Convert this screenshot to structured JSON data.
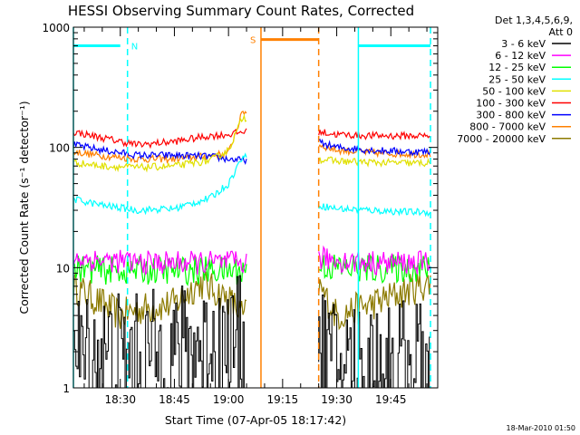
{
  "chart_data": {
    "type": "line",
    "title": "HESSI Observing Summary Count Rates, Corrected",
    "xlabel": "Start Time (07-Apr-05 18:17:42)",
    "ylabel": "Corrected Count Rate (s⁻¹ detector⁻¹)",
    "yscale": "log",
    "ylim": [
      1,
      1000
    ],
    "xlim": [
      "18:17",
      "19:58"
    ],
    "xticks": [
      "18:30",
      "18:45",
      "19:00",
      "19:15",
      "19:30",
      "19:45"
    ],
    "yticks": [
      "1",
      "10",
      "100",
      "1000"
    ],
    "legend_header": [
      "Det 1,3,4,5,6,9,",
      "Att 0"
    ],
    "legend_position": "top-right",
    "grid": false,
    "data_gaps": [
      [
        "19:05",
        "19:25"
      ]
    ],
    "series": [
      {
        "name": "3 - 6 keV",
        "color": "#000000",
        "x": [
          "18:17",
          "18:25",
          "18:35",
          "18:45",
          "18:55",
          "19:00",
          "19:04",
          "19:25",
          "19:30",
          "19:40",
          "19:50",
          "19:56"
        ],
        "values": [
          1.8,
          1.9,
          1.8,
          2.0,
          2.3,
          2.2,
          2.5,
          2.0,
          1.6,
          1.6,
          1.6,
          1.6
        ]
      },
      {
        "name": "6 - 12 keV",
        "color": "#ff00ff",
        "x": [
          "18:17",
          "18:25",
          "18:35",
          "18:45",
          "18:55",
          "19:00",
          "19:04",
          "19:25",
          "19:30",
          "19:40",
          "19:50",
          "19:56"
        ],
        "values": [
          12,
          11.5,
          11,
          11,
          11,
          11,
          11,
          12,
          11.5,
          11,
          11,
          11
        ]
      },
      {
        "name": "12 - 25 keV",
        "color": "#00ff00",
        "x": [
          "18:17",
          "18:25",
          "18:35",
          "18:45",
          "18:55",
          "19:00",
          "19:04",
          "19:25",
          "19:30",
          "19:40",
          "19:50",
          "19:56"
        ],
        "values": [
          10,
          9.5,
          9.5,
          9.5,
          9.5,
          9.5,
          9.5,
          10.5,
          10,
          9.8,
          9.8,
          9.8
        ]
      },
      {
        "name": "25 - 50 keV",
        "color": "#00ffff",
        "x": [
          "18:17",
          "18:25",
          "18:35",
          "18:45",
          "18:55",
          "19:00",
          "19:04",
          "19:25",
          "19:30",
          "19:40",
          "19:50",
          "19:56"
        ],
        "values": [
          37,
          33,
          30,
          31,
          38,
          50,
          85,
          33,
          31,
          30,
          29,
          29
        ]
      },
      {
        "name": "50 - 100 keV",
        "color": "#e0e000",
        "x": [
          "18:17",
          "18:25",
          "18:35",
          "18:45",
          "18:55",
          "19:00",
          "19:04",
          "19:25",
          "19:30",
          "19:40",
          "19:50",
          "19:56"
        ],
        "values": [
          75,
          70,
          68,
          70,
          78,
          95,
          180,
          80,
          77,
          75,
          74,
          74
        ]
      },
      {
        "name": "100 - 300 keV",
        "color": "#ff0000",
        "x": [
          "18:17",
          "18:25",
          "18:35",
          "18:45",
          "18:55",
          "19:00",
          "19:04",
          "19:25",
          "19:30",
          "19:40",
          "19:50",
          "19:56"
        ],
        "values": [
          135,
          120,
          105,
          112,
          125,
          128,
          135,
          135,
          128,
          125,
          125,
          125
        ]
      },
      {
        "name": "300 - 800 keV",
        "color": "#0000ff",
        "x": [
          "18:17",
          "18:25",
          "18:35",
          "18:45",
          "18:55",
          "19:00",
          "19:04",
          "19:25",
          "19:30",
          "19:40",
          "19:50",
          "19:56"
        ],
        "values": [
          105,
          95,
          86,
          86,
          84,
          80,
          78,
          110,
          100,
          95,
          92,
          92
        ]
      },
      {
        "name": "800 - 7000 keV",
        "color": "#ff8000",
        "x": [
          "18:17",
          "18:25",
          "18:35",
          "18:45",
          "18:55",
          "19:00",
          "19:04",
          "19:25",
          "19:30",
          "19:40",
          "19:50",
          "19:56"
        ],
        "values": [
          92,
          85,
          80,
          80,
          85,
          90,
          200,
          105,
          95,
          90,
          88,
          88
        ]
      },
      {
        "name": "7000 - 20000 keV",
        "color": "#8c7a00",
        "x": [
          "18:17",
          "18:25",
          "18:30",
          "18:35",
          "18:45",
          "18:52",
          "19:00",
          "19:04",
          "19:25",
          "19:30",
          "19:40",
          "19:50",
          "19:56"
        ],
        "values": [
          7,
          5,
          4,
          4.5,
          5,
          7.5,
          5.5,
          4,
          7,
          4,
          5,
          6.5,
          7.5
        ]
      }
    ],
    "annotations": [
      {
        "label": "N",
        "color": "#00ffff",
        "x_start": "18:17",
        "x_end": "18:32",
        "level": 700
      },
      {
        "label": "S",
        "color": "#ff8000",
        "x_start": "19:09",
        "x_end": "19:25",
        "level": 790
      },
      {
        "label": "",
        "color": "#00ffff",
        "x_start": "19:36",
        "x_end": "19:56",
        "level": 700
      }
    ],
    "vertical_markers": [
      {
        "x": "18:17",
        "color": "#00ffff",
        "style": "solid"
      },
      {
        "x": "18:32",
        "color": "#00ffff",
        "style": "dashed"
      },
      {
        "x": "19:09",
        "color": "#ff8000",
        "style": "solid"
      },
      {
        "x": "19:25",
        "color": "#ff8000",
        "style": "dashed"
      },
      {
        "x": "19:36",
        "color": "#00ffff",
        "style": "solid"
      },
      {
        "x": "19:56",
        "color": "#00ffff",
        "style": "dashed"
      }
    ]
  },
  "footer_timestamp": "18-Mar-2010 01:50"
}
